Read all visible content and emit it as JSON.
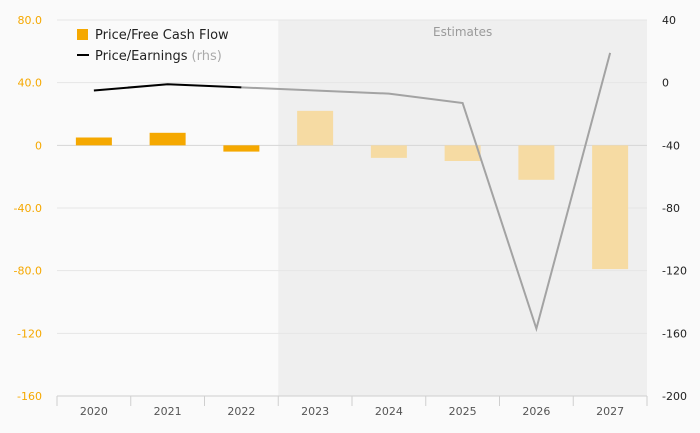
{
  "chart_data": {
    "type": "bar",
    "categories": [
      "2020",
      "2021",
      "2022",
      "2023",
      "2024",
      "2025",
      "2026",
      "2027"
    ],
    "estimates_from": "2023",
    "estimates_label": "Estimates",
    "series": [
      {
        "name": "Price/Free Cash Flow",
        "axis": "left",
        "type": "bar",
        "values": [
          5,
          8,
          -4,
          22,
          -8,
          -10,
          -22,
          -79
        ]
      },
      {
        "name": "Price/Earnings",
        "name_suffix": "(rhs)",
        "axis": "right",
        "type": "line",
        "values": [
          -5,
          -1,
          -3,
          -5,
          -7,
          -13,
          -157,
          19
        ]
      }
    ],
    "left_axis": {
      "ylim": [
        -160,
        80
      ],
      "ticks": [
        80,
        40,
        0,
        -40,
        -80,
        -120,
        -160
      ],
      "tick_labels": [
        "80.0",
        "40.0",
        "0",
        "-40.0",
        "-80.0",
        "-120",
        "-160"
      ]
    },
    "right_axis": {
      "ylim": [
        -200,
        40
      ],
      "ticks": [
        40,
        0,
        -40,
        -80,
        -120,
        -160,
        -200
      ],
      "tick_labels": [
        "40",
        "0",
        "-40",
        "-80",
        "-120",
        "-160",
        "-200"
      ]
    },
    "grid": true,
    "legend": "top-left",
    "colors": {
      "bar_actual": "#f5a800",
      "bar_estimate": "#f6dba3",
      "line_actual": "#000000",
      "line_estimate": "#a3a3a3",
      "left_axis": "#f5a800",
      "right_axis": "#222222",
      "estimates_bg": "#efefef"
    }
  }
}
